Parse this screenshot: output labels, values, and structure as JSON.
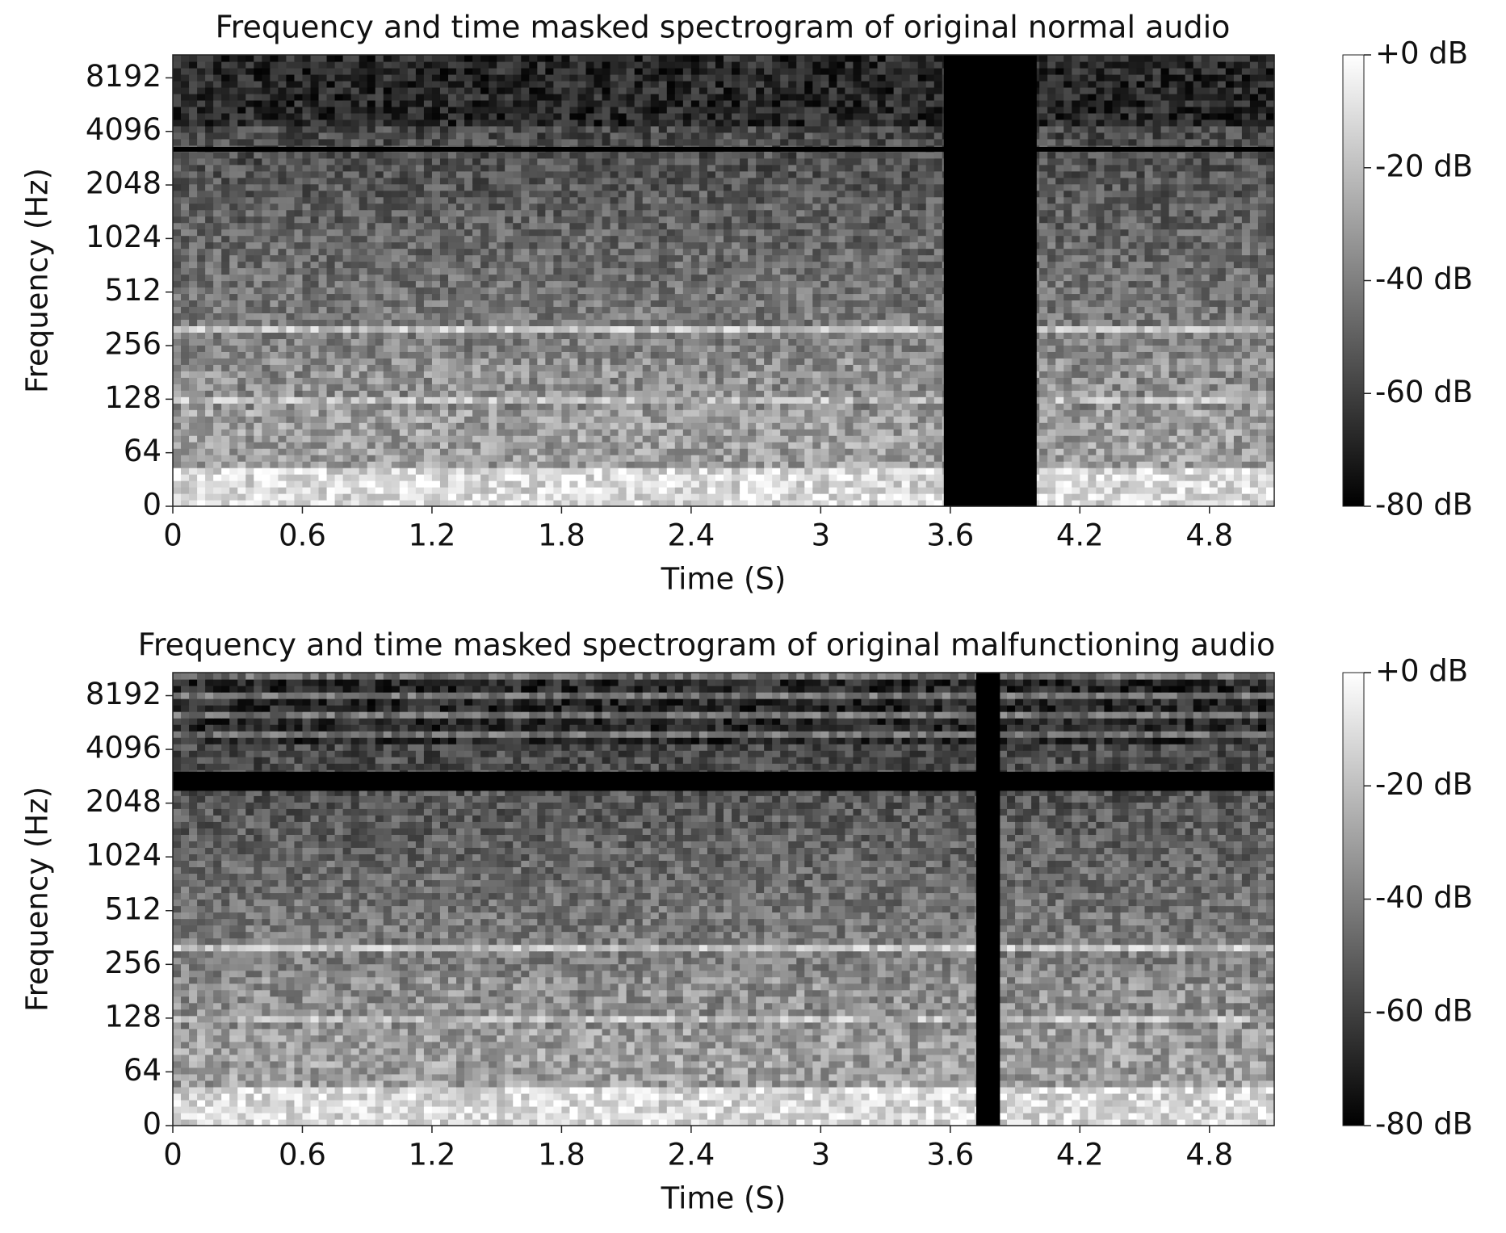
{
  "chart_data": [
    {
      "type": "spectrogram",
      "title": "Frequency and time masked spectrogram of original normal audio",
      "x_label": "Time (S)",
      "y_label": "Frequency (Hz)",
      "xlim": [
        0,
        5.1
      ],
      "xticks": [
        0,
        0.6,
        1.2,
        1.8,
        2.4,
        3,
        3.6,
        4.2,
        4.8
      ],
      "ylim": [
        0,
        11025
      ],
      "yticks": [
        0,
        64,
        128,
        256,
        512,
        1024,
        2048,
        4096,
        8192
      ],
      "time_mask": [
        3.57,
        4.0
      ],
      "frequency_mask": [
        3150,
        3350
      ],
      "colormap": "gray",
      "clim": [
        -80,
        0
      ],
      "cticks": [
        {
          "value": 0,
          "label": "+0 dB"
        },
        {
          "value": -20,
          "label": "-20 dB"
        },
        {
          "value": -40,
          "label": "-40 dB"
        },
        {
          "value": -60,
          "label": "-60 dB"
        },
        {
          "value": -80,
          "label": "-80 dB"
        }
      ]
    },
    {
      "type": "spectrogram",
      "title": "Frequency and time masked spectrogram of original malfunctioning audio",
      "x_label": "Time (S)",
      "y_label": "Frequency (Hz)",
      "xlim": [
        0,
        5.1
      ],
      "xticks": [
        0,
        0.6,
        1.2,
        1.8,
        2.4,
        3,
        3.6,
        4.2,
        4.8
      ],
      "ylim": [
        0,
        11025
      ],
      "yticks": [
        0,
        64,
        128,
        256,
        512,
        1024,
        2048,
        4096,
        8192
      ],
      "time_mask": [
        3.72,
        3.83
      ],
      "frequency_mask": [
        2400,
        3070
      ],
      "colormap": "gray",
      "clim": [
        -80,
        0
      ],
      "cticks": [
        {
          "value": 0,
          "label": "+0 dB"
        },
        {
          "value": -20,
          "label": "-20 dB"
        },
        {
          "value": -40,
          "label": "-40 dB"
        },
        {
          "value": -60,
          "label": "-60 dB"
        },
        {
          "value": -80,
          "label": "-80 dB"
        }
      ]
    }
  ]
}
